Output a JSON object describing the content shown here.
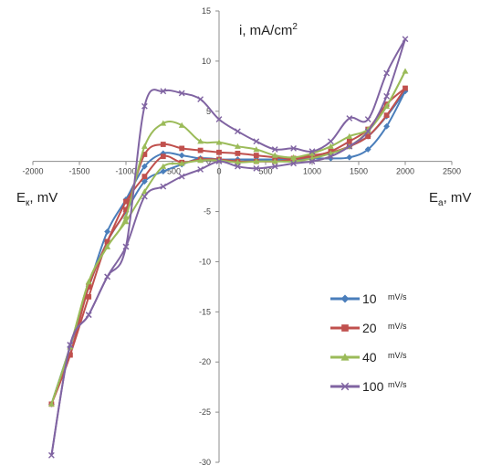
{
  "chart_data": {
    "type": "line",
    "y_axis_title": {
      "main": "i, mA/cm",
      "sup": "2"
    },
    "x_left_title": {
      "main": "E",
      "sub": "к",
      "tail": ", mV"
    },
    "x_right_title": {
      "main": "E",
      "sub": "a",
      "tail": ", mV"
    },
    "xlim": [
      -2000,
      2500
    ],
    "ylim": [
      -30,
      15
    ],
    "xticks": [
      -2000,
      -1500,
      -1000,
      -500,
      0,
      500,
      1000,
      1500,
      2000,
      2500
    ],
    "yticks": [
      -30,
      -25,
      -20,
      -15,
      -10,
      -5,
      0,
      5,
      10,
      15
    ],
    "xtick_labels": [
      "-2000",
      "-1500",
      "-1000",
      "-500",
      "0",
      "500",
      "1000",
      "1500",
      "2000",
      "2500"
    ],
    "ytick_labels": [
      "-30",
      "-25",
      "-20",
      "-15",
      "-10",
      "-5",
      "0",
      "5",
      "10",
      "15"
    ],
    "grid": false,
    "legend_position": "bottom-right",
    "series": [
      {
        "name": "10",
        "unit": "mV/s",
        "color": "#4a7ebb",
        "marker": "diamond",
        "forward": [
          [
            -1800,
            -24.2
          ],
          [
            -1600,
            -18.5
          ],
          [
            -1400,
            -12.5
          ],
          [
            -1200,
            -7.0
          ],
          [
            -1000,
            -3.8
          ],
          [
            -800,
            -0.5
          ],
          [
            -600,
            0.8
          ],
          [
            -400,
            0.6
          ],
          [
            -200,
            0.3
          ],
          [
            0,
            0.2
          ],
          [
            200,
            0.2
          ],
          [
            400,
            0.2
          ],
          [
            600,
            0.2
          ],
          [
            800,
            0.2
          ],
          [
            1000,
            0.3
          ],
          [
            1200,
            0.3
          ],
          [
            1400,
            0.4
          ],
          [
            1600,
            1.2
          ],
          [
            1800,
            3.5
          ],
          [
            2000,
            7.0
          ]
        ],
        "reverse": [
          [
            2000,
            7.0
          ],
          [
            1800,
            4.5
          ],
          [
            1600,
            2.5
          ],
          [
            1400,
            1.5
          ],
          [
            1200,
            0.8
          ],
          [
            1000,
            0.4
          ],
          [
            800,
            0.3
          ],
          [
            600,
            0.2
          ],
          [
            400,
            0.1
          ],
          [
            200,
            0.0
          ],
          [
            0,
            0.2
          ],
          [
            -200,
            0.3
          ],
          [
            -400,
            -0.3
          ],
          [
            -600,
            -1.0
          ],
          [
            -800,
            -2.0
          ],
          [
            -1000,
            -5.0
          ],
          [
            -1200,
            -8.0
          ],
          [
            -1400,
            -12.5
          ],
          [
            -1600,
            -18.5
          ],
          [
            -1800,
            -24.2
          ]
        ]
      },
      {
        "name": "20",
        "unit": "mV/s",
        "color": "#c0504d",
        "marker": "square",
        "forward": [
          [
            -1800,
            -24.2
          ],
          [
            -1600,
            -19.3
          ],
          [
            -1400,
            -13.5
          ],
          [
            -1200,
            -8.0
          ],
          [
            -1000,
            -4.8
          ],
          [
            -800,
            0.7
          ],
          [
            -600,
            1.7
          ],
          [
            -400,
            1.3
          ],
          [
            -200,
            1.1
          ],
          [
            0,
            0.9
          ],
          [
            200,
            0.8
          ],
          [
            400,
            0.6
          ],
          [
            600,
            0.4
          ],
          [
            800,
            0.3
          ],
          [
            1000,
            0.6
          ],
          [
            1200,
            0.9
          ],
          [
            1400,
            1.5
          ],
          [
            1600,
            2.5
          ],
          [
            1800,
            4.6
          ],
          [
            2000,
            7.3
          ]
        ],
        "reverse": [
          [
            2000,
            7.3
          ],
          [
            1800,
            5.7
          ],
          [
            1600,
            3.2
          ],
          [
            1400,
            2.0
          ],
          [
            1200,
            1.0
          ],
          [
            1000,
            0.5
          ],
          [
            800,
            0.2
          ],
          [
            600,
            0.0
          ],
          [
            400,
            0.0
          ],
          [
            200,
            0.0
          ],
          [
            0,
            0.2
          ],
          [
            -200,
            0.2
          ],
          [
            -400,
            -0.1
          ],
          [
            -600,
            0.5
          ],
          [
            -800,
            -1.5
          ],
          [
            -1000,
            -4.0
          ],
          [
            -1200,
            -8.0
          ],
          [
            -1400,
            -12.5
          ],
          [
            -1600,
            -19.3
          ],
          [
            -1800,
            -24.2
          ]
        ]
      },
      {
        "name": "40",
        "unit": "mV/s",
        "color": "#9bbb59",
        "marker": "triangle",
        "forward": [
          [
            -1800,
            -24.2
          ],
          [
            -1600,
            -18.5
          ],
          [
            -1400,
            -12.0
          ],
          [
            -1200,
            -8.5
          ],
          [
            -1000,
            -5.5
          ],
          [
            -800,
            1.5
          ],
          [
            -600,
            3.8
          ],
          [
            -400,
            3.6
          ],
          [
            -200,
            2.0
          ],
          [
            0,
            1.9
          ],
          [
            200,
            1.5
          ],
          [
            400,
            1.2
          ],
          [
            600,
            0.6
          ],
          [
            800,
            0.4
          ],
          [
            1000,
            0.8
          ],
          [
            1200,
            1.5
          ],
          [
            1400,
            2.5
          ],
          [
            1600,
            3.2
          ],
          [
            1800,
            5.5
          ],
          [
            2000,
            9.0
          ]
        ],
        "reverse": [
          [
            2000,
            9.0
          ],
          [
            1800,
            5.5
          ],
          [
            1600,
            3.0
          ],
          [
            1400,
            1.5
          ],
          [
            1200,
            0.8
          ],
          [
            1000,
            0.3
          ],
          [
            800,
            0.0
          ],
          [
            600,
            0.0
          ],
          [
            400,
            0.0
          ],
          [
            200,
            -0.1
          ],
          [
            0,
            0.1
          ],
          [
            -200,
            0.1
          ],
          [
            -400,
            -0.2
          ],
          [
            -600,
            -0.5
          ],
          [
            -800,
            -3.0
          ],
          [
            -1000,
            -6.0
          ],
          [
            -1200,
            -8.5
          ],
          [
            -1400,
            -12.0
          ],
          [
            -1600,
            -18.5
          ],
          [
            -1800,
            -24.2
          ]
        ]
      },
      {
        "name": "100",
        "unit": "mV/s",
        "color": "#8064a2",
        "marker": "x",
        "forward": [
          [
            -1800,
            -29.3
          ],
          [
            -1600,
            -18.3
          ],
          [
            -1400,
            -15.3
          ],
          [
            -1200,
            -11.5
          ],
          [
            -1000,
            -8.5
          ],
          [
            -800,
            5.5
          ],
          [
            -600,
            7.0
          ],
          [
            -400,
            6.8
          ],
          [
            -200,
            6.2
          ],
          [
            0,
            4.2
          ],
          [
            200,
            3.0
          ],
          [
            400,
            2.0
          ],
          [
            600,
            1.2
          ],
          [
            800,
            1.3
          ],
          [
            1000,
            1.0
          ],
          [
            1200,
            2.0
          ],
          [
            1400,
            4.3
          ],
          [
            1600,
            4.2
          ],
          [
            1800,
            8.8
          ],
          [
            2000,
            12.2
          ]
        ],
        "reverse": [
          [
            2000,
            12.2
          ],
          [
            1800,
            6.5
          ],
          [
            1600,
            3.0
          ],
          [
            1400,
            1.5
          ],
          [
            1200,
            0.5
          ],
          [
            1000,
            0.0
          ],
          [
            800,
            -0.2
          ],
          [
            600,
            -0.5
          ],
          [
            400,
            -0.7
          ],
          [
            200,
            -0.5
          ],
          [
            0,
            0.0
          ],
          [
            -200,
            -0.8
          ],
          [
            -400,
            -1.5
          ],
          [
            -600,
            -2.5
          ],
          [
            -800,
            -3.5
          ],
          [
            -1000,
            -8.5
          ],
          [
            -1200,
            -11.5
          ],
          [
            -1400,
            -15.3
          ],
          [
            -1600,
            -18.3
          ],
          [
            -1800,
            -29.3
          ]
        ]
      }
    ]
  }
}
